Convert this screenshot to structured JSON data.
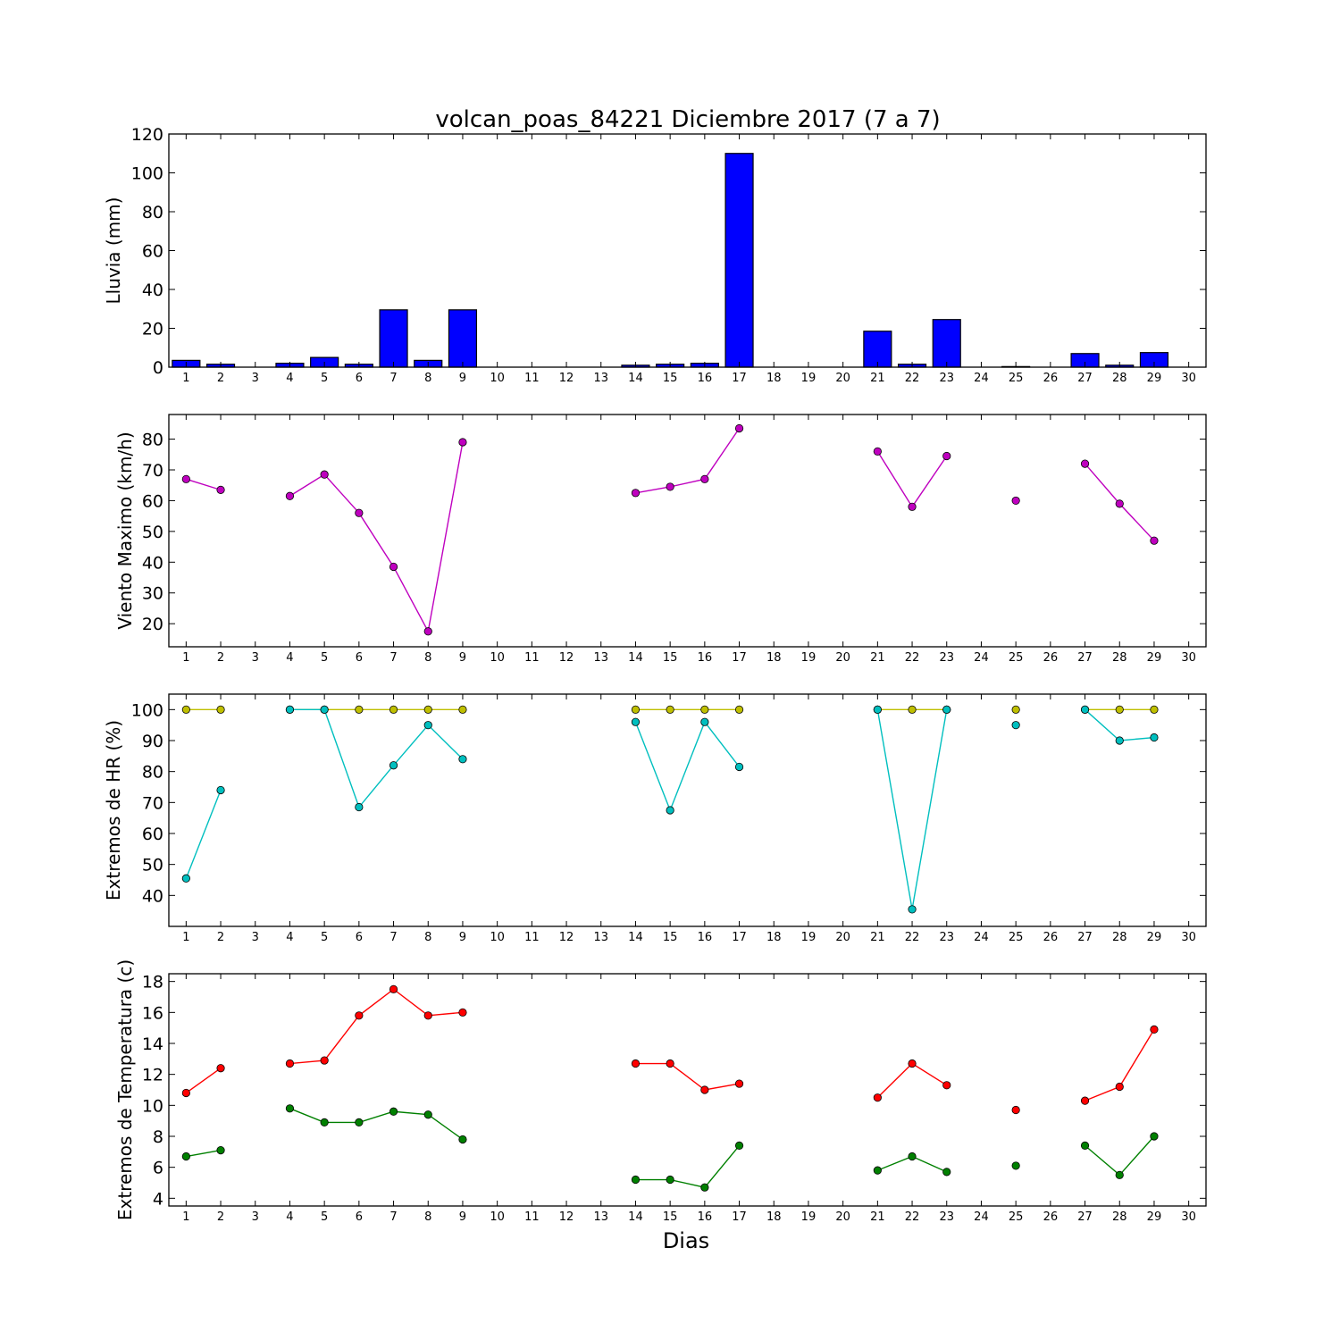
{
  "title": "volcan_poas_84221 Diciembre 2017  (7 a 7)",
  "xlabel": "Dias",
  "x_ticks": [
    "1",
    "2",
    "3",
    "4",
    "5",
    "6",
    "7",
    "8",
    "9",
    "10",
    "11",
    "12",
    "13",
    "14",
    "15",
    "16",
    "17",
    "18",
    "19",
    "20",
    "21",
    "22",
    "23",
    "24",
    "25",
    "26",
    "27",
    "28",
    "29",
    "30"
  ],
  "chart_data": [
    {
      "type": "bar",
      "ylabel": "Lluvia (mm)",
      "ylim": [
        0,
        120
      ],
      "yticks": [
        0,
        20,
        40,
        60,
        80,
        100,
        120
      ],
      "xlim": [
        0.5,
        30.5
      ],
      "x": [
        1,
        2,
        3,
        4,
        5,
        6,
        7,
        8,
        9,
        10,
        11,
        12,
        13,
        14,
        15,
        16,
        17,
        18,
        19,
        20,
        21,
        22,
        23,
        24,
        25,
        26,
        27,
        28,
        29,
        30
      ],
      "series": [
        {
          "color": "#0000ff",
          "values": [
            3.5,
            1.5,
            0,
            2.0,
            5.0,
            1.5,
            29.5,
            3.5,
            29.5,
            0,
            0,
            0,
            0,
            1.0,
            1.5,
            2.0,
            110.0,
            0,
            0,
            0,
            18.5,
            1.5,
            24.5,
            0,
            0.3,
            0,
            7.0,
            1.0,
            7.5,
            0
          ]
        }
      ]
    },
    {
      "type": "line",
      "ylabel": "Viento Maximo (km/h)",
      "ylim": [
        12.5,
        88
      ],
      "yticks": [
        20,
        30,
        40,
        50,
        60,
        70,
        80
      ],
      "xlim": [
        0.5,
        30.5
      ],
      "x": [
        1,
        2,
        3,
        4,
        5,
        6,
        7,
        8,
        9,
        10,
        11,
        12,
        13,
        14,
        15,
        16,
        17,
        18,
        19,
        20,
        21,
        22,
        23,
        24,
        25,
        26,
        27,
        28,
        29,
        30
      ],
      "series": [
        {
          "color": "#bf00bf",
          "values": [
            67,
            63.5,
            null,
            61.5,
            68.5,
            56,
            38.5,
            17.5,
            79,
            null,
            null,
            null,
            null,
            62.5,
            64.5,
            67,
            83.5,
            null,
            null,
            null,
            76,
            58,
            74.5,
            null,
            60,
            null,
            72,
            59,
            47,
            null
          ]
        }
      ]
    },
    {
      "type": "line",
      "ylabel": "Extremos de HR (%)",
      "ylim": [
        30,
        105
      ],
      "yticks": [
        40,
        50,
        60,
        70,
        80,
        90,
        100
      ],
      "xlim": [
        0.5,
        30.5
      ],
      "x": [
        1,
        2,
        3,
        4,
        5,
        6,
        7,
        8,
        9,
        10,
        11,
        12,
        13,
        14,
        15,
        16,
        17,
        18,
        19,
        20,
        21,
        22,
        23,
        24,
        25,
        26,
        27,
        28,
        29,
        30
      ],
      "series": [
        {
          "color": "#bfbf00",
          "values": [
            100,
            100,
            null,
            100,
            100,
            100,
            100,
            100,
            100,
            null,
            null,
            null,
            null,
            100,
            100,
            100,
            100,
            null,
            null,
            null,
            100,
            100,
            100,
            null,
            100,
            null,
            100,
            100,
            100,
            null
          ]
        },
        {
          "color": "#00bfbf",
          "values": [
            45.5,
            74,
            null,
            100,
            100,
            68.5,
            82,
            95,
            84,
            null,
            null,
            null,
            null,
            96,
            67.5,
            96,
            81.5,
            null,
            null,
            null,
            100,
            35.5,
            100,
            null,
            95,
            null,
            100,
            90,
            91,
            null
          ]
        }
      ]
    },
    {
      "type": "line",
      "ylabel": "Extremos de Temperatura (c)",
      "ylim": [
        3.5,
        18.5
      ],
      "yticks": [
        4,
        6,
        8,
        10,
        12,
        14,
        16,
        18
      ],
      "xlim": [
        0.5,
        30.5
      ],
      "x": [
        1,
        2,
        3,
        4,
        5,
        6,
        7,
        8,
        9,
        10,
        11,
        12,
        13,
        14,
        15,
        16,
        17,
        18,
        19,
        20,
        21,
        22,
        23,
        24,
        25,
        26,
        27,
        28,
        29,
        30
      ],
      "series": [
        {
          "color": "#ff0000",
          "values": [
            10.8,
            12.4,
            null,
            12.7,
            12.9,
            15.8,
            17.5,
            15.8,
            16.0,
            null,
            null,
            null,
            null,
            12.7,
            12.7,
            11.0,
            11.4,
            null,
            null,
            null,
            10.5,
            12.7,
            11.3,
            null,
            9.7,
            null,
            10.3,
            11.2,
            14.9,
            null
          ]
        },
        {
          "color": "#008000",
          "values": [
            6.7,
            7.1,
            null,
            9.8,
            8.9,
            8.9,
            9.6,
            9.4,
            7.8,
            null,
            null,
            null,
            null,
            5.2,
            5.2,
            4.7,
            7.4,
            null,
            null,
            null,
            5.8,
            6.7,
            5.7,
            null,
            6.1,
            null,
            7.4,
            5.5,
            8.0,
            null
          ]
        }
      ]
    }
  ]
}
